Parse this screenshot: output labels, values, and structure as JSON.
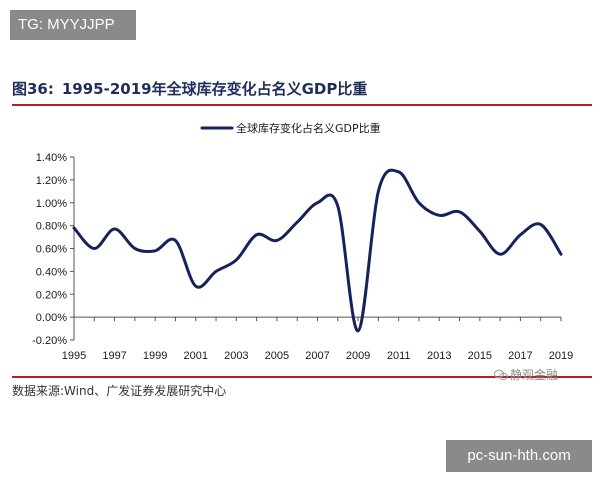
{
  "watermark_top": "TG: MYYJJPP",
  "watermark_bottom": "pc-sun-hth.com",
  "watermark_brand": "静观金融",
  "figure": {
    "number": "图36:",
    "title": "1995-2019年全球库存变化占名义GDP比重"
  },
  "source": "数据来源:Wind、广发证券发展研究中心",
  "colors": {
    "line": "#16225c",
    "accent_rule": "#b1202a",
    "badge": "#8a8a8a"
  },
  "chart_data": {
    "type": "line",
    "title": "",
    "xlabel": "",
    "ylabel": "",
    "legend_position": "top-center",
    "grid": false,
    "ylim": [
      -0.2,
      1.4
    ],
    "xlim": [
      1995,
      2019
    ],
    "x_tick_labels": [
      "1995",
      "1997",
      "1999",
      "2001",
      "2003",
      "2005",
      "2007",
      "2009",
      "2011",
      "2013",
      "2015",
      "2017",
      "2019"
    ],
    "y_tick_labels": [
      "-0.20%",
      "0.00%",
      "0.20%",
      "0.40%",
      "0.60%",
      "0.80%",
      "1.00%",
      "1.20%",
      "1.40%"
    ],
    "series": [
      {
        "name": "全球库存变化占名义GDP比重",
        "x": [
          1995,
          1996,
          1997,
          1998,
          1999,
          2000,
          2001,
          2002,
          2003,
          2004,
          2005,
          2006,
          2007,
          2008,
          2009,
          2010,
          2011,
          2012,
          2013,
          2014,
          2015,
          2016,
          2017,
          2018,
          2019
        ],
        "values": [
          0.78,
          0.6,
          0.77,
          0.6,
          0.58,
          0.67,
          0.27,
          0.4,
          0.5,
          0.72,
          0.67,
          0.83,
          1.0,
          0.97,
          -0.12,
          1.1,
          1.27,
          1.0,
          0.89,
          0.92,
          0.75,
          0.55,
          0.72,
          0.81,
          0.55
        ]
      }
    ]
  }
}
